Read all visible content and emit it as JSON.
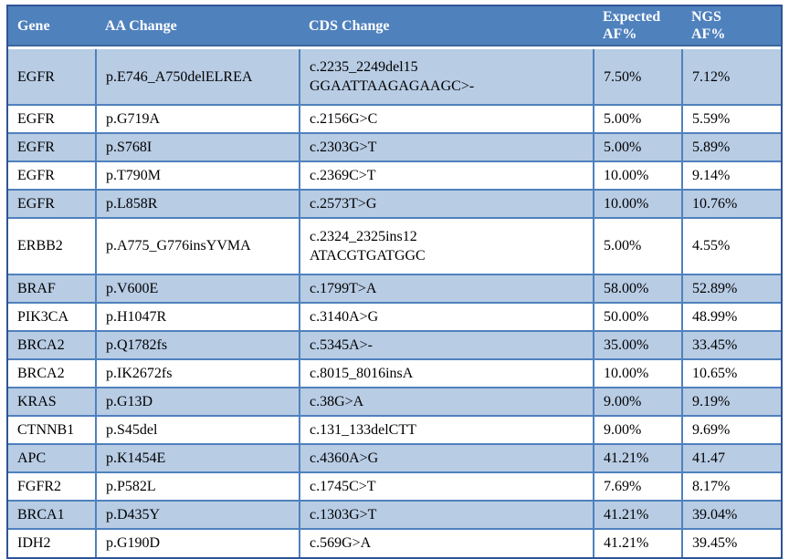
{
  "colors": {
    "header_bg": "#4f81bd",
    "header_text": "#ffffff",
    "band_row_bg": "#b8cce4",
    "plain_row_bg": "#ffffff",
    "grid_line": "#4f81bd",
    "outer_border": "#2f5496",
    "body_text": "#000000"
  },
  "table": {
    "columns": [
      {
        "id": "gene",
        "label": "Gene"
      },
      {
        "id": "aa_change",
        "label": "AA Change"
      },
      {
        "id": "cds_change",
        "label": "CDS Change"
      },
      {
        "id": "expected_af",
        "label": "Expected\nAF%"
      },
      {
        "id": "ngs_af",
        "label": "NGS\nAF%"
      }
    ],
    "rows": [
      {
        "gene": "EGFR",
        "aa_change": "p.E746_A750delELREA",
        "cds_change": "c.2235_2249del15\nGGAATTAAGAGAAGC>-",
        "expected_af": "7.50%",
        "ngs_af": "7.12%"
      },
      {
        "gene": "EGFR",
        "aa_change": "p.G719A",
        "cds_change": "c.2156G>C",
        "expected_af": "5.00%",
        "ngs_af": "5.59%"
      },
      {
        "gene": "EGFR",
        "aa_change": "p.S768I",
        "cds_change": "c.2303G>T",
        "expected_af": "5.00%",
        "ngs_af": "5.89%"
      },
      {
        "gene": "EGFR",
        "aa_change": "p.T790M",
        "cds_change": "c.2369C>T",
        "expected_af": "10.00%",
        "ngs_af": "9.14%"
      },
      {
        "gene": "EGFR",
        "aa_change": "p.L858R",
        "cds_change": "c.2573T>G",
        "expected_af": "10.00%",
        "ngs_af": "10.76%"
      },
      {
        "gene": "ERBB2",
        "aa_change": "p.A775_G776insYVMA",
        "cds_change": "c.2324_2325ins12\nATACGTGATGGC",
        "expected_af": "5.00%",
        "ngs_af": "4.55%"
      },
      {
        "gene": "BRAF",
        "aa_change": "p.V600E",
        "cds_change": "c.1799T>A",
        "expected_af": "58.00%",
        "ngs_af": "52.89%"
      },
      {
        "gene": "PIK3CA",
        "aa_change": "p.H1047R",
        "cds_change": "c.3140A>G",
        "expected_af": "50.00%",
        "ngs_af": "48.99%"
      },
      {
        "gene": "BRCA2",
        "aa_change": "p.Q1782fs",
        "cds_change": "c.5345A>-",
        "expected_af": "35.00%",
        "ngs_af": "33.45%"
      },
      {
        "gene": "BRCA2",
        "aa_change": "p.IK2672fs",
        "cds_change": "c.8015_8016insA",
        "expected_af": "10.00%",
        "ngs_af": "10.65%"
      },
      {
        "gene": "KRAS",
        "aa_change": "p.G13D",
        "cds_change": "c.38G>A",
        "expected_af": "9.00%",
        "ngs_af": "9.19%"
      },
      {
        "gene": "CTNNB1",
        "aa_change": "p.S45del",
        "cds_change": "c.131_133delCTT",
        "expected_af": "9.00%",
        "ngs_af": "9.69%"
      },
      {
        "gene": "APC",
        "aa_change": "p.K1454E",
        "cds_change": "c.4360A>G",
        "expected_af": "41.21%",
        "ngs_af": "41.47"
      },
      {
        "gene": "FGFR2",
        "aa_change": "p.P582L",
        "cds_change": "c.1745C>T",
        "expected_af": "7.69%",
        "ngs_af": "8.17%"
      },
      {
        "gene": "BRCA1",
        "aa_change": "p.D435Y",
        "cds_change": "c.1303G>T",
        "expected_af": "41.21%",
        "ngs_af": "39.04%"
      },
      {
        "gene": "IDH2",
        "aa_change": "p.G190D",
        "cds_change": "c.569G>A",
        "expected_af": "41.21%",
        "ngs_af": "39.45%"
      }
    ]
  }
}
